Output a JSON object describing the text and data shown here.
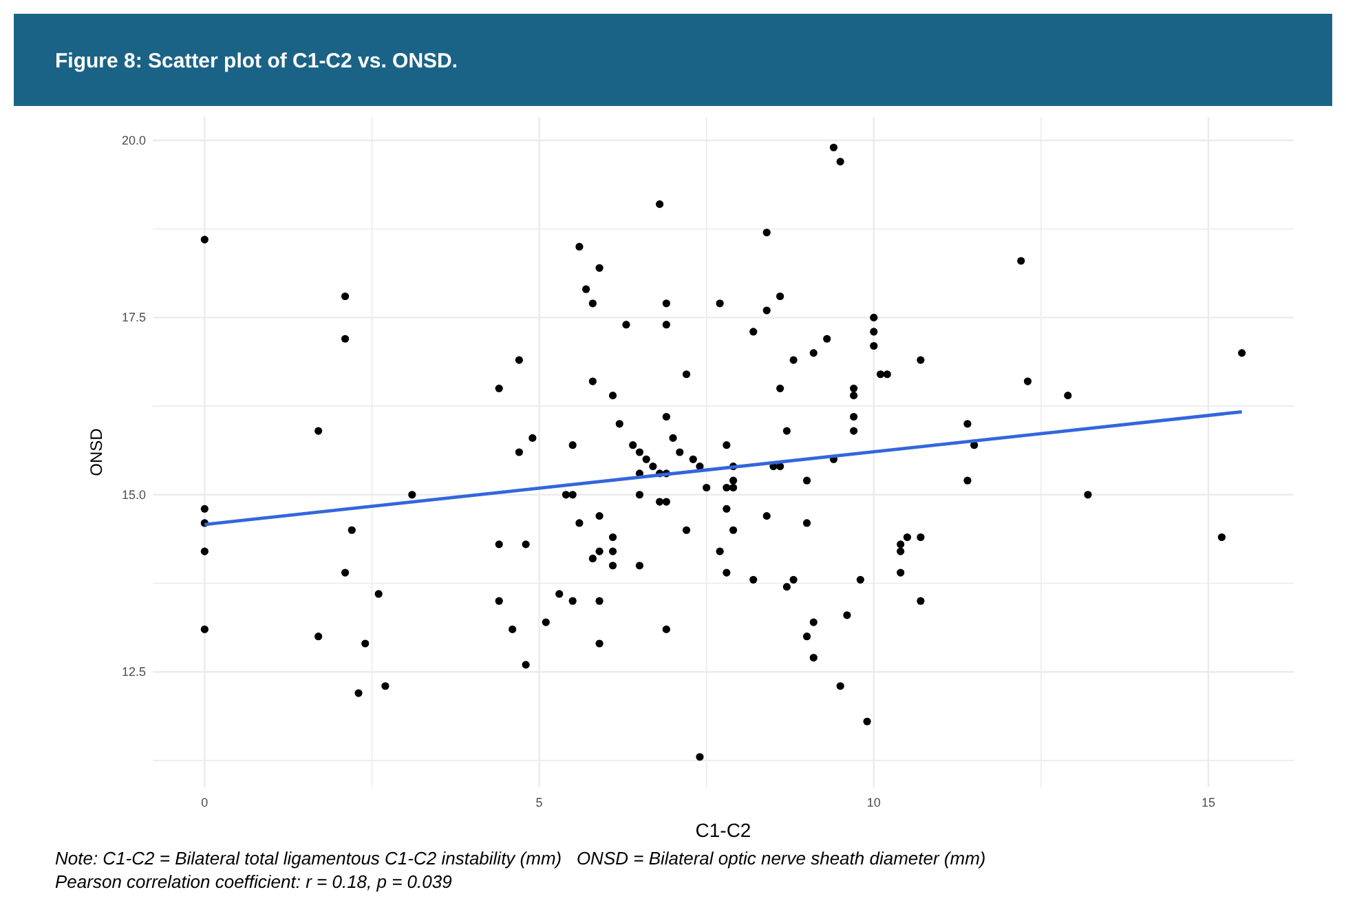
{
  "chart_data": {
    "type": "scatter",
    "title": "Figure 8: Scatter plot of C1-C2 vs. ONSD.",
    "xlabel": "C1-C2",
    "ylabel": "ONSD",
    "annotations": [
      "Note: C1-C2 = Bilateral total ligamentous C1-C2 instability (mm)   ONSD = Bilateral optic nerve sheath diameter (mm)",
      "Pearson correlation coefficient: r = 0.18, p = 0.039"
    ],
    "xlim": [
      -0.775,
      16.275
    ],
    "ylim": [
      10.87,
      20.33
    ],
    "xticks": [
      0,
      {
        "value": 2.5,
        "label": null
      },
      5,
      {
        "value": 7.5,
        "label": null
      },
      10,
      {
        "value": 12.5,
        "label": null
      },
      15
    ],
    "yticks": [
      {
        "value": 11.25,
        "label": null
      },
      12.5,
      {
        "value": 13.75,
        "label": null
      },
      {
        "value": 15,
        "label": "15.0"
      },
      {
        "value": 16.25,
        "label": null
      },
      17.5,
      {
        "value": 18.75,
        "label": null
      },
      {
        "value": 20,
        "label": "20.0"
      }
    ],
    "grid": true,
    "marker": "circle",
    "series": [
      {
        "color": "#000000",
        "x": [
          0,
          2.1,
          2.1,
          4.4,
          1.7,
          3.1,
          0,
          0,
          2.2,
          4.4,
          0,
          2.1,
          2.6,
          4.4,
          0,
          1.7,
          2.4,
          2.3,
          2.7,
          6.8,
          8.4,
          5.6,
          5.9,
          5.7,
          5.8,
          6.9,
          7.7,
          8.6,
          8.4,
          6.3,
          6.9,
          8.2,
          4.7,
          7.2,
          5.8,
          8.6,
          6.1,
          6.9,
          6.2,
          4.9,
          4.7,
          5.5,
          7.0,
          6.4,
          6.5,
          7.1,
          6.6,
          7.3,
          7.8,
          6.7,
          7.4,
          7.9,
          8.7,
          8.5,
          8.6,
          6.5,
          6.8,
          6.9,
          7.9,
          7.5,
          7.8,
          7.9,
          5.4,
          5.5,
          6.5,
          6.8,
          6.9,
          7.8,
          5.6,
          5.9,
          8.4,
          7.2,
          7.9,
          6.1,
          4.8,
          5.8,
          5.9,
          6.1,
          6.1,
          6.5,
          7.7,
          7.8,
          8.2,
          8.7,
          5.3,
          5.5,
          5.9,
          4.6,
          6.9,
          5.1,
          5.9,
          4.8,
          7.4,
          9.4,
          9.5,
          12.2,
          10.0,
          10.0,
          10.0,
          9.3,
          9.1,
          8.8,
          10.7,
          15.5,
          10.1,
          10.2,
          12.3,
          9.7,
          9.7,
          12.9,
          9.7,
          11.4,
          9.7,
          11.5,
          9.4,
          9.0,
          11.4,
          13.2,
          9.0,
          10.5,
          10.7,
          10.4,
          10.4,
          15.2,
          10.4,
          9.8,
          8.8,
          10.7,
          9.6,
          9.1,
          9.0,
          9.1,
          9.5,
          9.9
        ],
        "values": [
          18.6,
          17.8,
          17.2,
          16.5,
          15.9,
          15.0,
          14.8,
          14.6,
          14.5,
          14.3,
          14.2,
          13.9,
          13.6,
          13.5,
          13.1,
          13.0,
          12.9,
          12.2,
          12.3,
          19.1,
          18.7,
          18.5,
          18.2,
          17.9,
          17.7,
          17.7,
          17.7,
          17.8,
          17.6,
          17.4,
          17.4,
          17.3,
          16.9,
          16.7,
          16.6,
          16.5,
          16.4,
          16.1,
          16.0,
          15.8,
          15.6,
          15.7,
          15.8,
          15.7,
          15.6,
          15.6,
          15.5,
          15.5,
          15.7,
          15.4,
          15.4,
          15.4,
          15.9,
          15.4,
          15.4,
          15.3,
          15.3,
          15.3,
          15.2,
          15.1,
          15.1,
          15.1,
          15.0,
          15.0,
          15.0,
          14.9,
          14.9,
          14.8,
          14.6,
          14.7,
          14.7,
          14.5,
          14.5,
          14.4,
          14.3,
          14.1,
          14.2,
          14.2,
          14.0,
          14.0,
          14.2,
          13.9,
          13.8,
          13.7,
          13.6,
          13.5,
          13.5,
          13.1,
          13.1,
          13.2,
          12.9,
          12.6,
          11.3,
          19.9,
          19.7,
          18.3,
          17.5,
          17.3,
          17.1,
          17.2,
          17.0,
          16.9,
          16.9,
          17.0,
          16.7,
          16.7,
          16.6,
          16.5,
          16.4,
          16.4,
          16.1,
          16.0,
          15.9,
          15.7,
          15.5,
          15.2,
          15.2,
          15.0,
          14.6,
          14.4,
          14.4,
          14.3,
          14.2,
          14.4,
          13.9,
          13.8,
          13.8,
          13.5,
          13.3,
          13.2,
          13.0,
          12.7,
          12.3,
          11.8
        ]
      },
      {
        "type": "line",
        "color": "#3366dd",
        "marker": "none",
        "x": [
          0,
          15.5
        ],
        "values": [
          14.58,
          16.17
        ]
      }
    ]
  }
}
